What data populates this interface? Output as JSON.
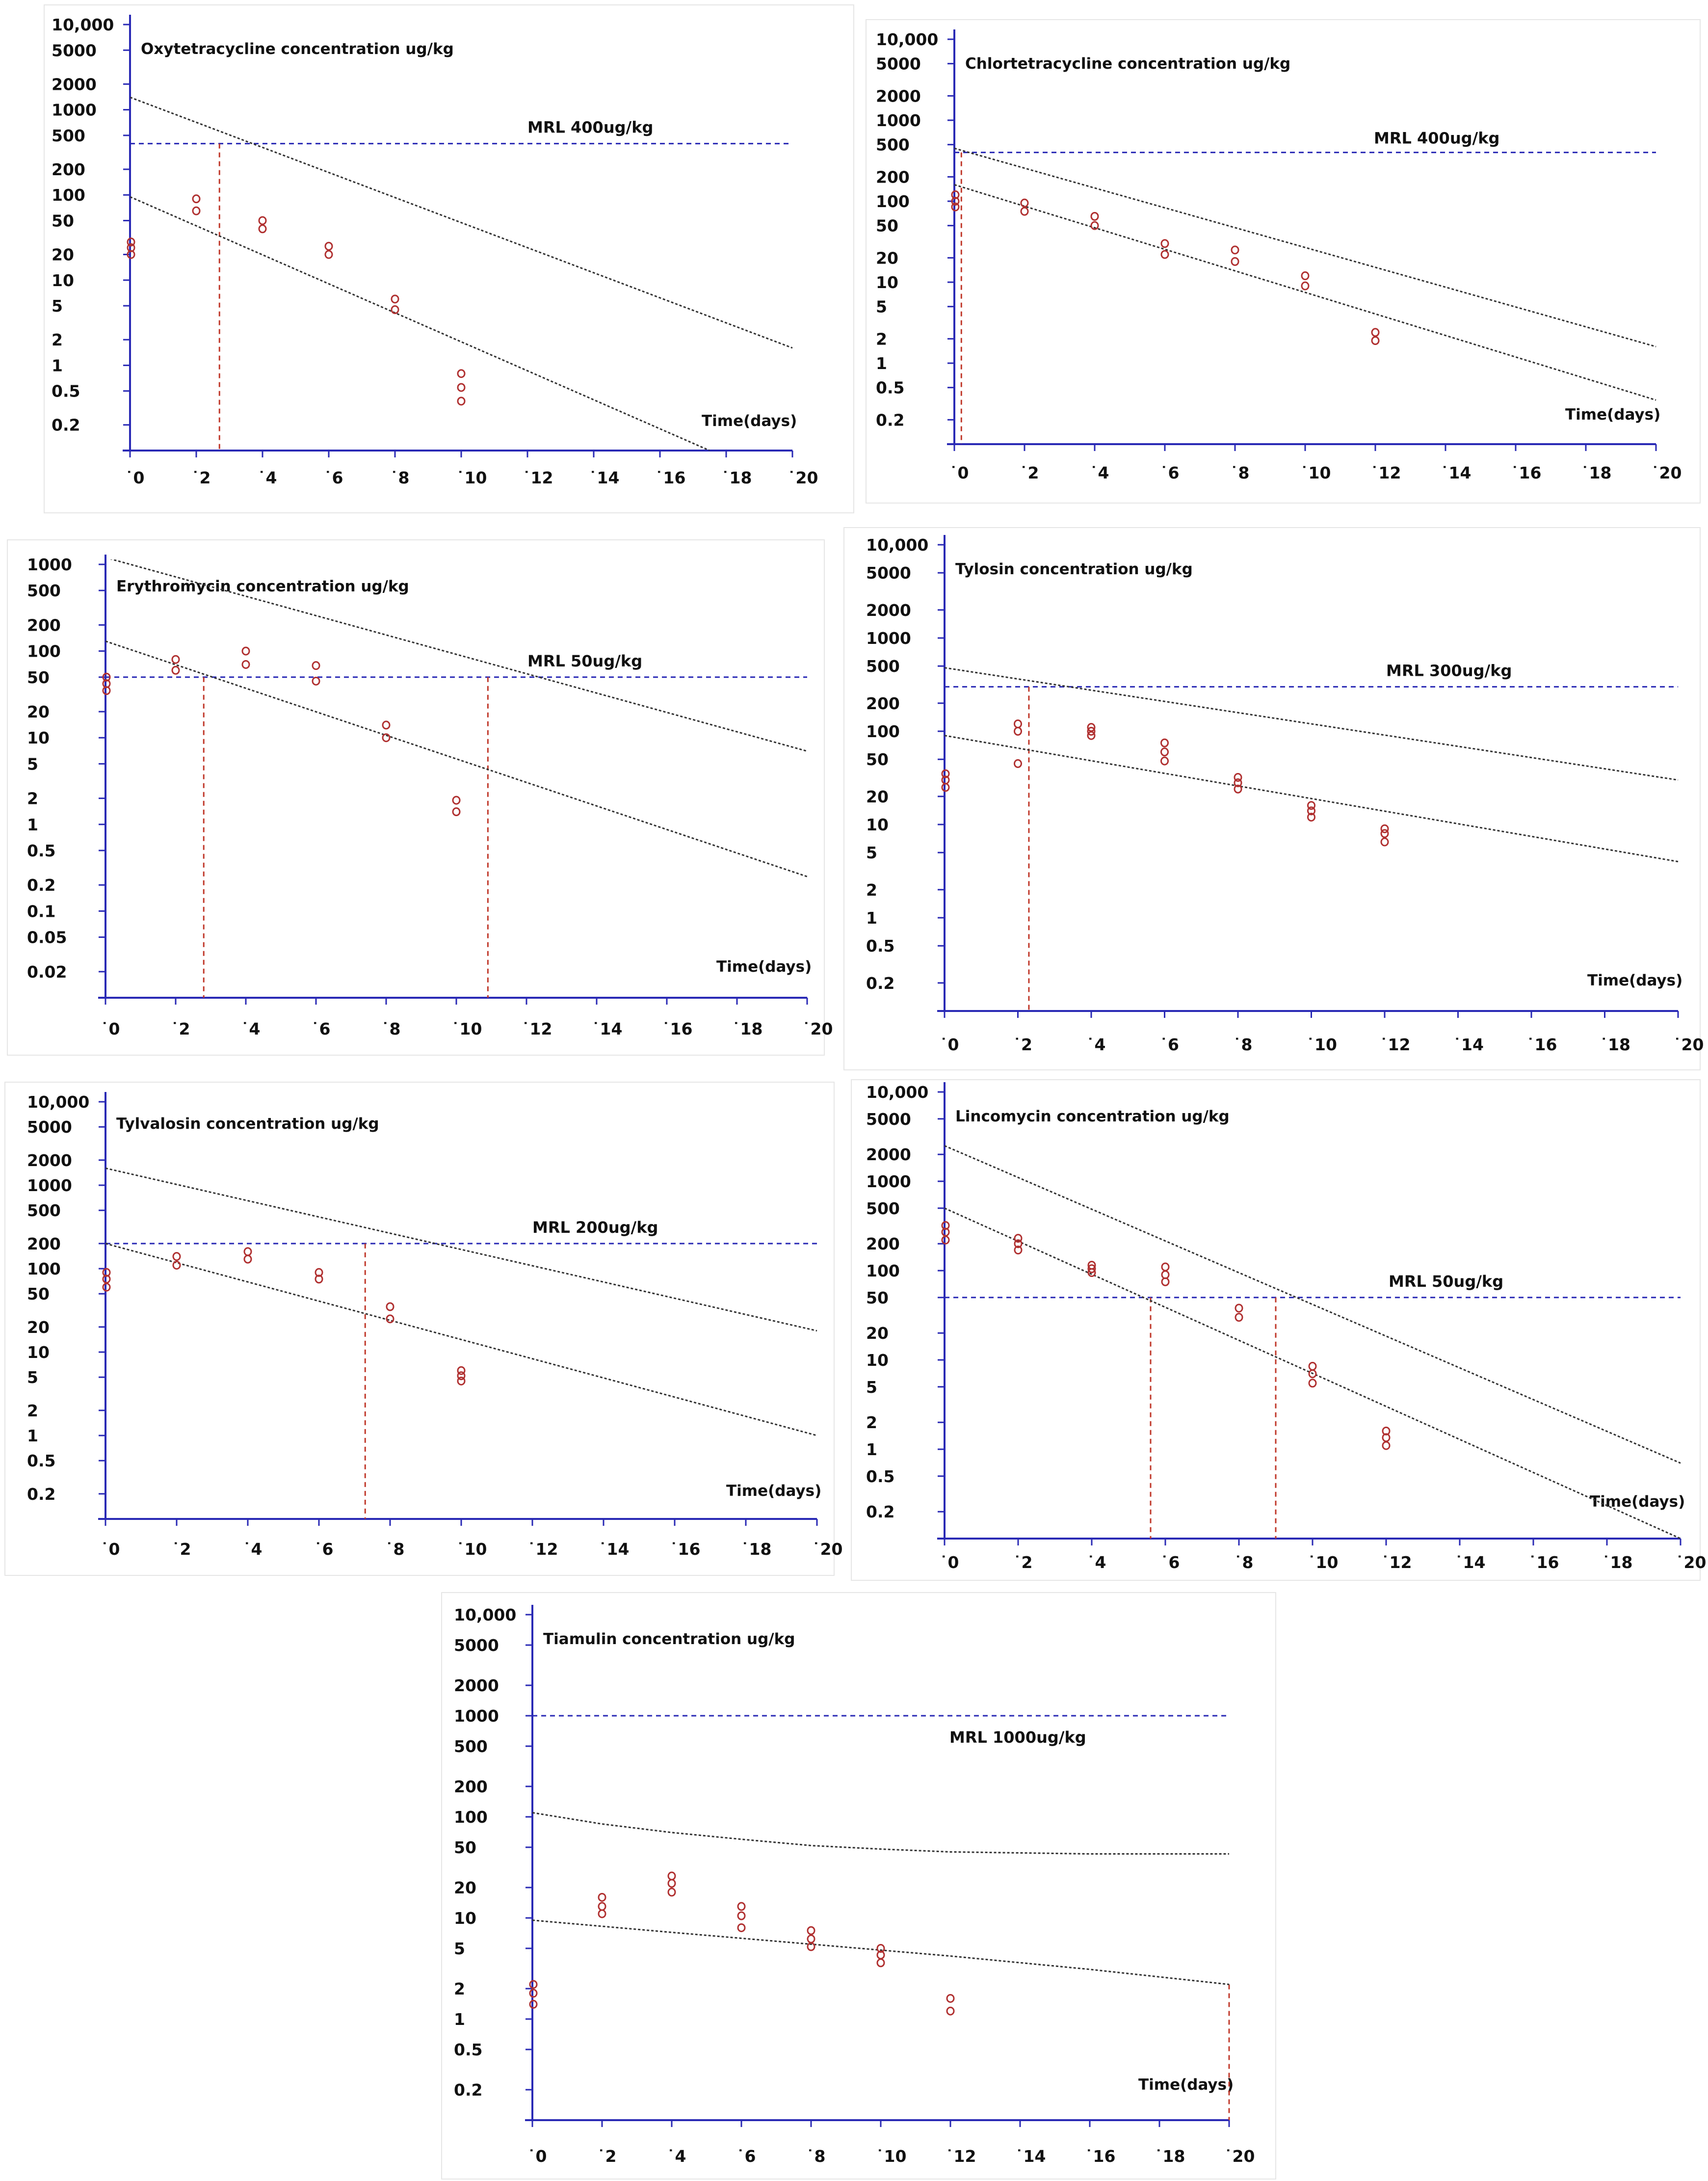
{
  "chart_data": [
    {
      "type": "scatter",
      "title": "Oxytetracycline concentration ug/kg",
      "xlabel": "Time(days)",
      "ylabel": "Oxytetracycline concentration ug/kg",
      "y_scale": "log",
      "ylim": [
        0.1,
        10000
      ],
      "xlim": [
        0,
        20
      ],
      "x_ticks": [
        "0",
        "2",
        "4",
        "6",
        "8",
        "10",
        "12",
        "14",
        "16",
        "18",
        "20"
      ],
      "y_ticks": [
        {
          "value": 10000,
          "label": "10,000"
        },
        {
          "value": 5000,
          "label": "5000"
        },
        {
          "value": 2000,
          "label": "2000"
        },
        {
          "value": 1000,
          "label": "1000"
        },
        {
          "value": 500,
          "label": "500"
        },
        {
          "value": 200,
          "label": "200"
        },
        {
          "value": 100,
          "label": "100"
        },
        {
          "value": 50,
          "label": "50"
        },
        {
          "value": 20,
          "label": "20"
        },
        {
          "value": 10,
          "label": "10"
        },
        {
          "value": 5,
          "label": "5"
        },
        {
          "value": 2,
          "label": "2"
        },
        {
          "value": 1,
          "label": "1"
        },
        {
          "value": 0.5,
          "label": "0.5"
        },
        {
          "value": 0.2,
          "label": "0.2"
        }
      ],
      "mrl": {
        "value": 400,
        "label": "MRL 400ug/kg"
      },
      "withdrawal_lines": [
        2.7
      ],
      "series": [
        {
          "name": "upper tolerance limit",
          "kind": "line",
          "x": [
            0,
            20
          ],
          "y": [
            1400,
            1.6
          ]
        },
        {
          "name": "regression line",
          "kind": "line",
          "x": [
            0,
            17.5
          ],
          "y": [
            95,
            0.1
          ]
        },
        {
          "name": "residues",
          "kind": "points",
          "x": [
            0,
            0,
            0,
            2,
            2,
            4,
            4,
            6,
            6,
            8,
            8,
            10,
            10,
            10
          ],
          "y": [
            28,
            24,
            20,
            90,
            65,
            50,
            40,
            25,
            20,
            6,
            4.5,
            0.8,
            0.55,
            0.38
          ]
        }
      ]
    },
    {
      "type": "scatter",
      "title": "Chlortetracycline concentration ug/kg",
      "xlabel": "Time(days)",
      "ylabel": "Chlortetracycline concentration ug/kg",
      "y_scale": "log",
      "ylim": [
        0.1,
        10000
      ],
      "xlim": [
        0,
        20
      ],
      "x_ticks": [
        "0",
        "2",
        "4",
        "6",
        "8",
        "10",
        "12",
        "14",
        "16",
        "18",
        "20"
      ],
      "y_ticks": [
        {
          "value": 10000,
          "label": "10,000"
        },
        {
          "value": 5000,
          "label": "5000"
        },
        {
          "value": 2000,
          "label": "2000"
        },
        {
          "value": 1000,
          "label": "1000"
        },
        {
          "value": 500,
          "label": "500"
        },
        {
          "value": 200,
          "label": "200"
        },
        {
          "value": 100,
          "label": "100"
        },
        {
          "value": 50,
          "label": "50"
        },
        {
          "value": 20,
          "label": "20"
        },
        {
          "value": 10,
          "label": "10"
        },
        {
          "value": 5,
          "label": "5"
        },
        {
          "value": 2,
          "label": "2"
        },
        {
          "value": 1,
          "label": "1"
        },
        {
          "value": 0.5,
          "label": "0.5"
        },
        {
          "value": 0.2,
          "label": "0.2"
        }
      ],
      "mrl": {
        "value": 400,
        "label": "MRL 400ug/kg"
      },
      "withdrawal_lines": [
        0.2
      ],
      "series": [
        {
          "name": "upper tolerance limit",
          "kind": "line",
          "x": [
            0,
            20
          ],
          "y": [
            450,
            1.6
          ]
        },
        {
          "name": "regression line",
          "kind": "line",
          "x": [
            0,
            20
          ],
          "y": [
            160,
            0.35
          ]
        },
        {
          "name": "residues",
          "kind": "points",
          "x": [
            0,
            0,
            0,
            2,
            2,
            4,
            4,
            6,
            6,
            8,
            8,
            10,
            10,
            12,
            12
          ],
          "y": [
            120,
            100,
            85,
            95,
            75,
            65,
            50,
            30,
            22,
            25,
            18,
            12,
            9,
            2.4,
            1.9
          ]
        }
      ]
    },
    {
      "type": "scatter",
      "title": "Erythromycin concentration ug/kg",
      "xlabel": "Time(days)",
      "ylabel": "Erythromycin concentration ug/kg",
      "y_scale": "log",
      "ylim": [
        0.01,
        1000
      ],
      "xlim": [
        0,
        20
      ],
      "x_ticks": [
        "0",
        "2",
        "4",
        "6",
        "8",
        "10",
        "12",
        "14",
        "16",
        "18",
        "20"
      ],
      "y_ticks": [
        {
          "value": 1000,
          "label": "1000"
        },
        {
          "value": 500,
          "label": "500"
        },
        {
          "value": 200,
          "label": "200"
        },
        {
          "value": 100,
          "label": "100"
        },
        {
          "value": 50,
          "label": "50"
        },
        {
          "value": 20,
          "label": "20"
        },
        {
          "value": 10,
          "label": "10"
        },
        {
          "value": 5,
          "label": "5"
        },
        {
          "value": 2,
          "label": "2"
        },
        {
          "value": 1,
          "label": "1"
        },
        {
          "value": 0.5,
          "label": "0.5"
        },
        {
          "value": 0.2,
          "label": "0.2"
        },
        {
          "value": 0.1,
          "label": "0.1"
        },
        {
          "value": 0.05,
          "label": "0.05"
        },
        {
          "value": 0.02,
          "label": "0.02"
        }
      ],
      "mrl": {
        "value": 50,
        "label": "MRL 50ug/kg"
      },
      "withdrawal_lines": [
        2.8,
        10.9
      ],
      "series": [
        {
          "name": "upper tolerance limit",
          "kind": "line",
          "x": [
            0,
            20
          ],
          "y": [
            1200,
            7
          ]
        },
        {
          "name": "regression line",
          "kind": "line",
          "x": [
            0,
            20
          ],
          "y": [
            130,
            0.25
          ]
        },
        {
          "name": "residues",
          "kind": "points",
          "x": [
            0,
            0,
            0,
            2,
            2,
            4,
            4,
            6,
            6,
            8,
            8,
            10,
            10
          ],
          "y": [
            50,
            42,
            35,
            80,
            60,
            100,
            70,
            68,
            45,
            14,
            10,
            1.9,
            1.4
          ]
        }
      ]
    },
    {
      "type": "scatter",
      "title": "Tylosin concentration ug/kg",
      "xlabel": "Time(days)",
      "ylabel": "Tylosin concentration ug/kg",
      "y_scale": "log",
      "ylim": [
        0.1,
        10000
      ],
      "xlim": [
        0,
        20
      ],
      "x_ticks": [
        "0",
        "2",
        "4",
        "6",
        "8",
        "10",
        "12",
        "14",
        "16",
        "18",
        "20"
      ],
      "y_ticks": [
        {
          "value": 10000,
          "label": "10,000"
        },
        {
          "value": 5000,
          "label": "5000"
        },
        {
          "value": 2000,
          "label": "2000"
        },
        {
          "value": 1000,
          "label": "1000"
        },
        {
          "value": 500,
          "label": "500"
        },
        {
          "value": 200,
          "label": "200"
        },
        {
          "value": 100,
          "label": "100"
        },
        {
          "value": 50,
          "label": "50"
        },
        {
          "value": 20,
          "label": "20"
        },
        {
          "value": 10,
          "label": "10"
        },
        {
          "value": 5,
          "label": "5"
        },
        {
          "value": 2,
          "label": "2"
        },
        {
          "value": 1,
          "label": "1"
        },
        {
          "value": 0.5,
          "label": "0.5"
        },
        {
          "value": 0.2,
          "label": "0.2"
        }
      ],
      "mrl": {
        "value": 300,
        "label": "MRL 300ug/kg"
      },
      "withdrawal_lines": [
        2.3
      ],
      "series": [
        {
          "name": "upper tolerance limit",
          "kind": "line",
          "x": [
            0,
            20
          ],
          "y": [
            480,
            30
          ]
        },
        {
          "name": "regression line",
          "kind": "line",
          "x": [
            0,
            20
          ],
          "y": [
            90,
            4
          ]
        },
        {
          "name": "residues",
          "kind": "points",
          "x": [
            0,
            0,
            0,
            2,
            2,
            2,
            4,
            4,
            4,
            6,
            6,
            6,
            8,
            8,
            8,
            10,
            10,
            10,
            12,
            12,
            12
          ],
          "y": [
            35,
            30,
            25,
            120,
            100,
            45,
            110,
            100,
            90,
            75,
            60,
            48,
            32,
            28,
            24,
            16,
            14,
            12,
            9,
            8,
            6.5
          ]
        }
      ]
    },
    {
      "type": "scatter",
      "title": "Tylvalosin concentration ug/kg",
      "xlabel": "Time(days)",
      "ylabel": "Tylvalosin concentration ug/kg",
      "y_scale": "log",
      "ylim": [
        0.1,
        10000
      ],
      "xlim": [
        0,
        20
      ],
      "x_ticks": [
        "0",
        "2",
        "4",
        "6",
        "8",
        "10",
        "12",
        "14",
        "16",
        "18",
        "20"
      ],
      "y_ticks": [
        {
          "value": 10000,
          "label": "10,000"
        },
        {
          "value": 5000,
          "label": "5000"
        },
        {
          "value": 2000,
          "label": "2000"
        },
        {
          "value": 1000,
          "label": "1000"
        },
        {
          "value": 500,
          "label": "500"
        },
        {
          "value": 200,
          "label": "200"
        },
        {
          "value": 100,
          "label": "100"
        },
        {
          "value": 50,
          "label": "50"
        },
        {
          "value": 20,
          "label": "20"
        },
        {
          "value": 10,
          "label": "10"
        },
        {
          "value": 5,
          "label": "5"
        },
        {
          "value": 2,
          "label": "2"
        },
        {
          "value": 1,
          "label": "1"
        },
        {
          "value": 0.5,
          "label": "0.5"
        },
        {
          "value": 0.2,
          "label": "0.2"
        }
      ],
      "mrl": {
        "value": 200,
        "label": "MRL 200ug/kg"
      },
      "withdrawal_lines": [
        7.3
      ],
      "series": [
        {
          "name": "upper tolerance limit",
          "kind": "line",
          "x": [
            0,
            20
          ],
          "y": [
            1600,
            18
          ]
        },
        {
          "name": "regression line",
          "kind": "line",
          "x": [
            0,
            20
          ],
          "y": [
            200,
            1
          ]
        },
        {
          "name": "residues",
          "kind": "points",
          "x": [
            0,
            0,
            0,
            2,
            2,
            4,
            4,
            6,
            6,
            8,
            8,
            10,
            10,
            10
          ],
          "y": [
            90,
            75,
            60,
            140,
            110,
            160,
            130,
            90,
            75,
            35,
            25,
            6,
            5.2,
            4.5
          ]
        }
      ]
    },
    {
      "type": "scatter",
      "title": "Lincomycin concentration ug/kg",
      "xlabel": "Time(days)",
      "ylabel": "Lincomycin concentration ug/kg",
      "y_scale": "log",
      "ylim": [
        0.1,
        10000
      ],
      "xlim": [
        0,
        20
      ],
      "x_ticks": [
        "0",
        "2",
        "4",
        "6",
        "8",
        "10",
        "12",
        "14",
        "16",
        "18",
        "20"
      ],
      "y_ticks": [
        {
          "value": 10000,
          "label": "10,000"
        },
        {
          "value": 5000,
          "label": "5000"
        },
        {
          "value": 2000,
          "label": "2000"
        },
        {
          "value": 1000,
          "label": "1000"
        },
        {
          "value": 500,
          "label": "500"
        },
        {
          "value": 200,
          "label": "200"
        },
        {
          "value": 100,
          "label": "100"
        },
        {
          "value": 50,
          "label": "50"
        },
        {
          "value": 20,
          "label": "20"
        },
        {
          "value": 10,
          "label": "10"
        },
        {
          "value": 5,
          "label": "5"
        },
        {
          "value": 2,
          "label": "2"
        },
        {
          "value": 1,
          "label": "1"
        },
        {
          "value": 0.5,
          "label": "0.5"
        },
        {
          "value": 0.2,
          "label": "0.2"
        }
      ],
      "mrl": {
        "value": 50,
        "label": "MRL 50ug/kg"
      },
      "withdrawal_lines": [
        5.6,
        9.0
      ],
      "series": [
        {
          "name": "upper tolerance limit",
          "kind": "line",
          "x": [
            0,
            20
          ],
          "y": [
            2500,
            0.7
          ]
        },
        {
          "name": "regression line",
          "kind": "line",
          "x": [
            0,
            20
          ],
          "y": [
            500,
            0.1
          ]
        },
        {
          "name": "residues",
          "kind": "points",
          "x": [
            0,
            0,
            0,
            2,
            2,
            2,
            4,
            4,
            4,
            6,
            6,
            6,
            8,
            8,
            10,
            10,
            10,
            12,
            12,
            12
          ],
          "y": [
            320,
            270,
            220,
            230,
            200,
            170,
            115,
            105,
            95,
            110,
            90,
            75,
            38,
            30,
            8.5,
            7,
            5.5,
            1.6,
            1.35,
            1.1
          ]
        }
      ]
    },
    {
      "type": "scatter",
      "title": "Tiamulin concentration ug/kg",
      "xlabel": "Time(days)",
      "ylabel": "Tiamulin concentration ug/kg",
      "y_scale": "log",
      "ylim": [
        0.1,
        10000
      ],
      "xlim": [
        0,
        20
      ],
      "x_ticks": [
        "0",
        "2",
        "4",
        "6",
        "8",
        "10",
        "12",
        "14",
        "16",
        "18",
        "20"
      ],
      "y_ticks": [
        {
          "value": 10000,
          "label": "10,000"
        },
        {
          "value": 5000,
          "label": "5000"
        },
        {
          "value": 2000,
          "label": "2000"
        },
        {
          "value": 1000,
          "label": "1000"
        },
        {
          "value": 500,
          "label": "500"
        },
        {
          "value": 200,
          "label": "200"
        },
        {
          "value": 100,
          "label": "100"
        },
        {
          "value": 50,
          "label": "50"
        },
        {
          "value": 20,
          "label": "20"
        },
        {
          "value": 10,
          "label": "10"
        },
        {
          "value": 5,
          "label": "5"
        },
        {
          "value": 2,
          "label": "2"
        },
        {
          "value": 1,
          "label": "1"
        },
        {
          "value": 0.5,
          "label": "0.5"
        },
        {
          "value": 0.2,
          "label": "0.2"
        }
      ],
      "mrl": {
        "value": 1000,
        "label": "MRL 1000ug/kg"
      },
      "withdrawal_lines": [
        20
      ],
      "series": [
        {
          "name": "upper tolerance limit",
          "kind": "line",
          "x": [
            0,
            2,
            4,
            6,
            8,
            10,
            12,
            14,
            16,
            18,
            20
          ],
          "y": [
            110,
            85,
            70,
            60,
            52,
            48,
            45,
            44,
            43,
            43,
            43
          ]
        },
        {
          "name": "regression line",
          "kind": "line",
          "x": [
            0,
            4,
            8,
            12,
            16,
            20
          ],
          "y": [
            9.5,
            7.2,
            5.5,
            4.2,
            3.1,
            2.2
          ]
        },
        {
          "name": "residues",
          "kind": "points",
          "x": [
            0,
            0,
            0,
            2,
            2,
            2,
            4,
            4,
            4,
            6,
            6,
            6,
            8,
            8,
            8,
            10,
            10,
            10,
            12,
            12
          ],
          "y": [
            2.2,
            1.8,
            1.4,
            16,
            13,
            11,
            26,
            22,
            18,
            13,
            10.5,
            8,
            7.5,
            6.2,
            5.2,
            5,
            4.3,
            3.6,
            1.6,
            1.2
          ]
        }
      ]
    }
  ]
}
